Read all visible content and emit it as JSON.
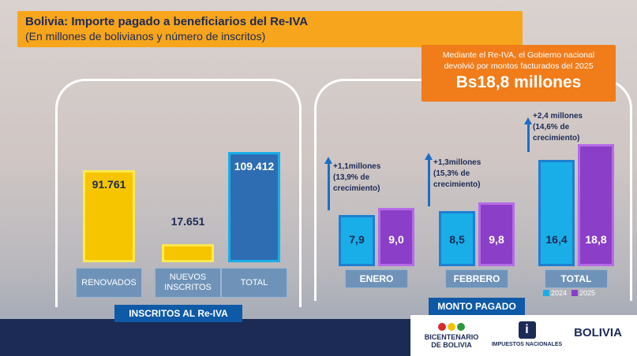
{
  "header": {
    "title": "Bolivia: Importe pagado a beneficiarios del Re-IVA",
    "subtitle": "(En millones de bolivianos y número de inscritos)"
  },
  "callout": {
    "text": "Mediante el Re-IVA, el Gobierno nacional devolvió por montos facturados del 2025",
    "amount": "Bs18,8 millones"
  },
  "chart_data": [
    {
      "type": "bar",
      "title": "INSCRITOS AL Re-IVA",
      "categories": [
        "RENOVADOS",
        "NUEVOS INSCRITOS",
        "TOTAL"
      ],
      "values": [
        91761,
        17651,
        109412
      ],
      "value_labels": [
        "91.761",
        "17.651",
        "109.412"
      ],
      "colors": [
        "#ffd400",
        "#ffd400",
        "#2f6db3"
      ]
    },
    {
      "type": "grouped-bar",
      "title": "MONTO PAGADO",
      "categories": [
        "ENERO",
        "FEBRERO",
        "TOTAL"
      ],
      "series": [
        {
          "name": "2024",
          "color": "#19aee8",
          "values": [
            7.9,
            8.5,
            16.4
          ],
          "value_labels": [
            "7,9",
            "8,5",
            "16,4"
          ]
        },
        {
          "name": "2025",
          "color": "#8b3fc8",
          "values": [
            9.0,
            9.8,
            18.8
          ],
          "value_labels": [
            "9,0",
            "9,8",
            "18,8"
          ]
        }
      ],
      "annotations": [
        "+1,1millones (13,9% de crecimiento)",
        "+1,3millones (15,3% de crecimiento)",
        "+2,4 millones (14,6% de crecimiento)"
      ],
      "legend": "bottom"
    }
  ],
  "footer": {
    "logos": [
      "BICENTENARIO DE BOLIVIA",
      "IMPUESTOS NACIONALES",
      "BOLIVIA"
    ]
  }
}
